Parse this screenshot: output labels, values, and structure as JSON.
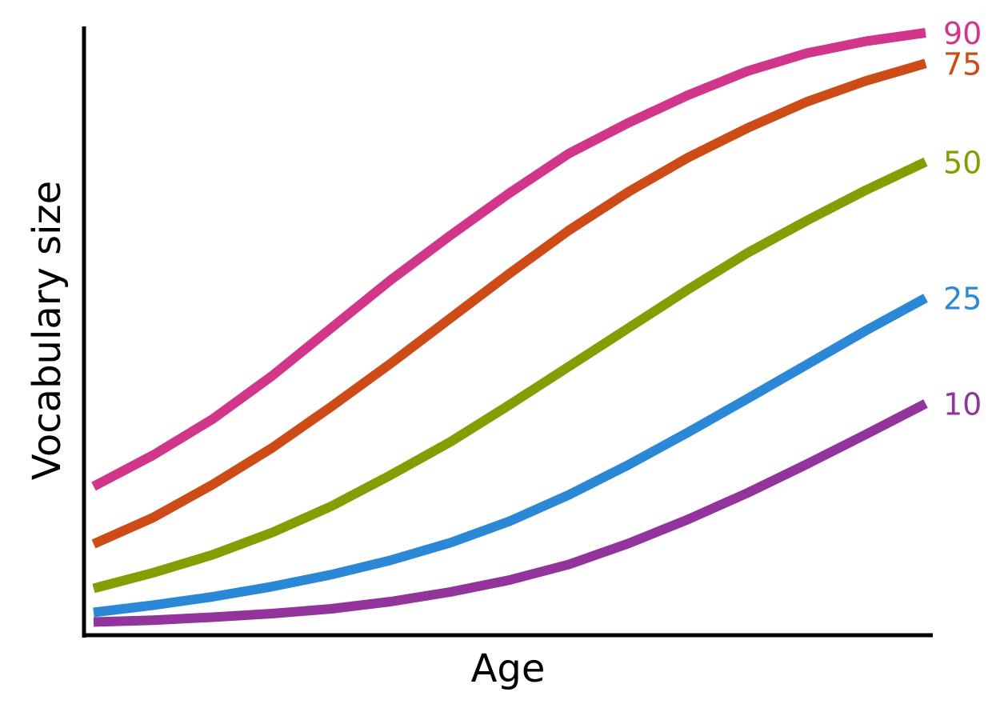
{
  "chart_data": {
    "type": "line",
    "xlabel": "Age",
    "ylabel": "Vocabulary size",
    "xlim": [
      0,
      14
    ],
    "ylim": [
      0,
      100
    ],
    "grid": false,
    "legend": "inline-right",
    "x": [
      0,
      1,
      2,
      3,
      4,
      5,
      6,
      7,
      8,
      9,
      10,
      11,
      12,
      13,
      14
    ],
    "series": [
      {
        "name": "90",
        "color": "#d1368b",
        "values": [
          24,
          29.2,
          35.2,
          42.4,
          50.4,
          58.4,
          65.8,
          72.9,
          79.5,
          84.6,
          89.2,
          93.2,
          96.2,
          98.2,
          99.6
        ]
      },
      {
        "name": "75",
        "color": "#cc4b17",
        "values": [
          14.4,
          18.8,
          24.3,
          30.4,
          37.3,
          44.5,
          52.0,
          59.5,
          66.7,
          73.1,
          78.8,
          83.7,
          88.1,
          91.6,
          94.5
        ]
      },
      {
        "name": "50",
        "color": "#839e00",
        "values": [
          7.0,
          9.6,
          12.6,
          16.3,
          20.7,
          25.9,
          31.4,
          37.6,
          44.0,
          50.4,
          56.8,
          62.9,
          68.3,
          73.4,
          78.1
        ]
      },
      {
        "name": "25",
        "color": "#2b88d6",
        "values": [
          3.0,
          4.2,
          5.6,
          7.3,
          9.3,
          11.7,
          14.6,
          18.2,
          22.6,
          27.6,
          33.0,
          38.6,
          44.3,
          50.0,
          55.4
        ]
      },
      {
        "name": "10",
        "color": "#92349b",
        "values": [
          1.4,
          1.7,
          2.2,
          2.8,
          3.6,
          4.8,
          6.4,
          8.4,
          11.0,
          14.5,
          18.5,
          22.9,
          27.7,
          32.7,
          37.8
        ]
      }
    ]
  }
}
